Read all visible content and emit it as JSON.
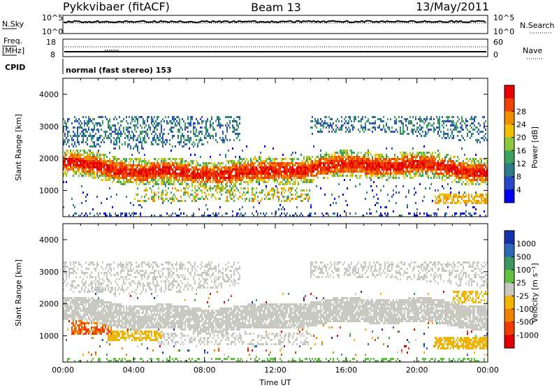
{
  "header": {
    "station": "Pykkvibaer (fitACF)",
    "beam": "Beam 13",
    "date": "13/May/2011"
  },
  "top_panels": {
    "nsky": {
      "label": "N.Sky",
      "tick_top": "10^5",
      "tick_bottom": "10^0"
    },
    "nsearch": {
      "label": "N.Search",
      "tick_top": "10^5",
      "tick_bottom": "10^0"
    },
    "freq": {
      "label_line1": "Freq.",
      "label_line2": "[MHz]",
      "tick_top": "18",
      "tick_bottom": "8"
    },
    "nave": {
      "label": "Nave",
      "tick_top": "60",
      "tick_bottom": "0"
    },
    "cpid": {
      "label": "CPID",
      "text": "normal (fast stereo) 153"
    }
  },
  "chart_data": [
    {
      "type": "heatmap",
      "name": "power-panel",
      "ylabel": "Slant Range [km]",
      "xlabel": "",
      "ylim": [
        180,
        4500
      ],
      "xlim": [
        0,
        24
      ],
      "yticks": [
        "1000",
        "2000",
        "3000",
        "4000"
      ],
      "colorbar": {
        "label": "Power [dB]",
        "ticks": [
          "4",
          "8",
          "12",
          "16",
          "20",
          "24",
          "28"
        ],
        "colors": [
          "#0000f0",
          "#2848c8",
          "#2c7c8c",
          "#3ca060",
          "#8cc840",
          "#f0c000",
          "#f08c00",
          "#f04000",
          "#e80000"
        ]
      }
    },
    {
      "type": "heatmap",
      "name": "velocity-panel",
      "ylabel": "Slant Range [km]",
      "xlabel": "Time UT",
      "ylim": [
        180,
        4500
      ],
      "xlim": [
        0,
        24
      ],
      "yticks": [
        "1000",
        "2000",
        "3000",
        "4000"
      ],
      "xticks": [
        "00:00",
        "04:00",
        "08:00",
        "12:00",
        "16:00",
        "20:00",
        "00:00"
      ],
      "colorbar": {
        "label": "Velocity [m s⁻¹]",
        "ticks": [
          "1000",
          "500",
          "100",
          "25",
          "-25",
          "-100",
          "-500",
          "-1000"
        ],
        "colors": [
          "#1830b0",
          "#2c68b8",
          "#3c9860",
          "#60c040",
          "#c8c8c0",
          "#f0b400",
          "#f08000",
          "#f03c00",
          "#e00000"
        ]
      }
    }
  ]
}
